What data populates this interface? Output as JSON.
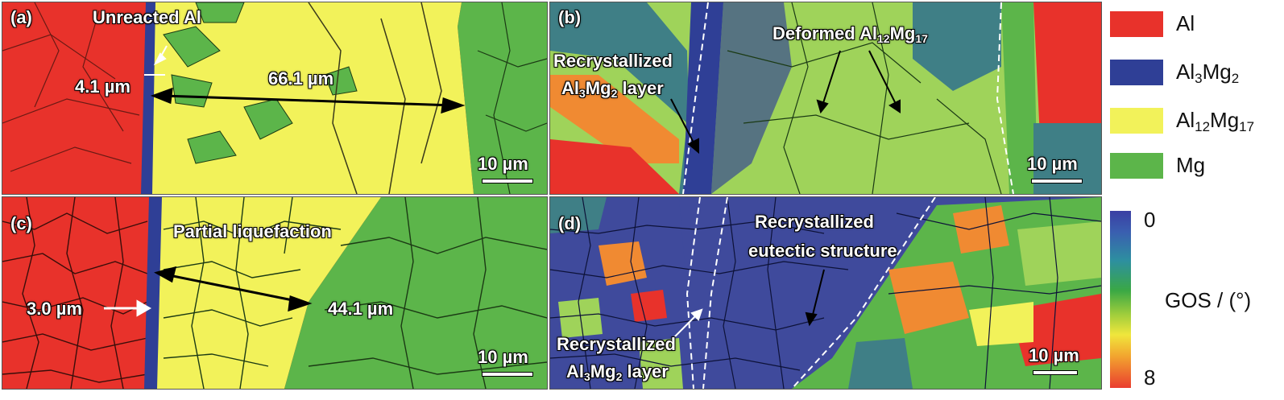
{
  "panels": {
    "a": {
      "tag": "(a)",
      "unreacted": "Unreacted Al",
      "thick_small": "4.1 µm",
      "thick_large": "66.1 µm",
      "scale": "10 µm"
    },
    "b": {
      "tag": "(b)",
      "recryst_line1": "Recrystallized",
      "recryst_line2_a": "Al",
      "recryst_line2_sub1": "3",
      "recryst_line2_b": "Mg",
      "recryst_line2_sub2": "2",
      "recryst_line2_c": " layer",
      "deformed_a": "Deformed Al",
      "deformed_sub1": "12",
      "deformed_b": "Mg",
      "deformed_sub2": "17",
      "scale": "10 µm"
    },
    "c": {
      "tag": "(c)",
      "liquefaction": "Partial liquefaction",
      "thick_small": "3.0 µm",
      "thick_large": "44.1 µm",
      "scale": "10 µm"
    },
    "d": {
      "tag": "(d)",
      "eutectic_line1": "Recrystallized",
      "eutectic_line2": "eutectic structure",
      "recryst_line1": "Recrystallized",
      "recryst_line2_a": "Al",
      "recryst_line2_sub1": "3",
      "recryst_line2_b": "Mg",
      "recryst_line2_sub2": "2",
      "recryst_line2_c": " layer",
      "scale": "10 µm"
    }
  },
  "phase_legend": [
    {
      "main": "Al",
      "sub1": "",
      "main2": "",
      "sub2": "",
      "color": "#e8322b"
    },
    {
      "main": "Al",
      "sub1": "3",
      "main2": "Mg",
      "sub2": "2",
      "color": "#2f3f96"
    },
    {
      "main": "Al",
      "sub1": "12",
      "main2": "Mg",
      "sub2": "17",
      "color": "#f2f25a"
    },
    {
      "main": "Mg",
      "sub1": "",
      "main2": "",
      "sub2": "",
      "color": "#5cb54a"
    }
  ],
  "gos_legend": {
    "top": "0",
    "label": "GOS / (°)",
    "bottom": "8"
  },
  "colors": {
    "al": "#e8322b",
    "al3mg2": "#2f3f96",
    "al12mg17": "#f2f25a",
    "mg": "#5cb54a",
    "mg_dark": "#3e9a3a",
    "gos_teal": "#3f7f86",
    "gos_orange": "#f08a32"
  }
}
